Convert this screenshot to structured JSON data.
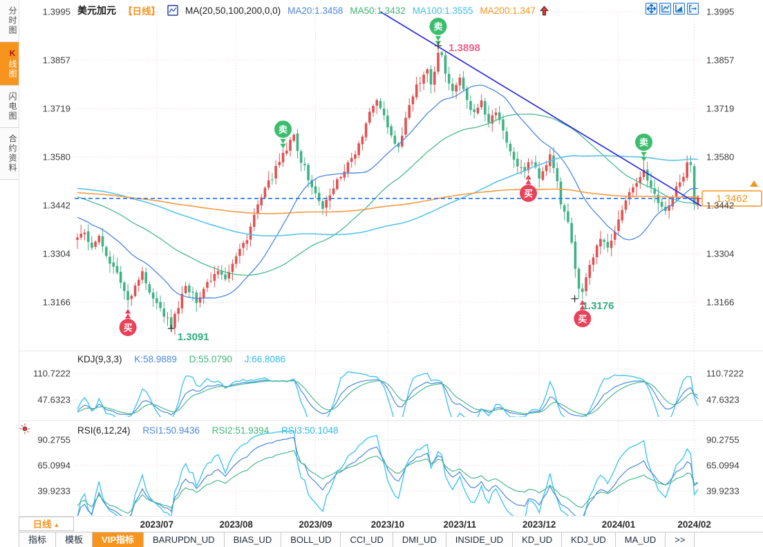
{
  "header": {
    "symbol": "美元加元",
    "period_tag": "【日线】",
    "ma_settings": "MA(20,50,100,200,0,0)",
    "ma_values": [
      {
        "label": "MA20:1.3458",
        "color": "#4a86e0"
      },
      {
        "label": "MA50:1.3432",
        "color": "#3cb878"
      },
      {
        "label": "MA100:1.3555",
        "color": "#45c0e8"
      },
      {
        "label": "MA200:1.347",
        "color": "#f7941d"
      }
    ]
  },
  "sidebar": {
    "items": [
      {
        "label": "分时图",
        "selected": false
      },
      {
        "label": "K线图",
        "label_head": "K",
        "label_rest": "线图",
        "selected": true
      },
      {
        "label": "闪电图",
        "selected": false
      },
      {
        "label": "合约资料",
        "selected": false
      }
    ]
  },
  "kdj": {
    "title": "KDJ(9,3,3)",
    "k_label": "K:58.9889",
    "d_label": "D:55.0790",
    "j_label": "J:66.8086",
    "axis": [
      "110.7222",
      "47.6323"
    ]
  },
  "rsi": {
    "title": "RSI(6,12,24)",
    "labels": [
      "RSI1:50.9436",
      "RSI2:51.9394",
      "RSI3:50.1048"
    ],
    "axis": [
      "90.2755",
      "65.0994",
      "39.9233"
    ]
  },
  "xaxis": {
    "period_label": "日线",
    "period_arrow": "▲",
    "months": [
      {
        "label": "2023/07",
        "day": 22
      },
      {
        "label": "2023/08",
        "day": 44
      },
      {
        "label": "2023/09",
        "day": 66
      },
      {
        "label": "2023/10",
        "day": 86
      },
      {
        "label": "2023/11",
        "day": 106
      },
      {
        "label": "2023/12",
        "day": 128
      },
      {
        "label": "2024/01",
        "day": 150
      },
      {
        "label": "2024/02",
        "day": 171
      }
    ]
  },
  "bottom_tabs": {
    "items": [
      {
        "label": "指标",
        "selected": false
      },
      {
        "label": "模板",
        "selected": false
      },
      {
        "label": "VIP指标",
        "selected": true
      },
      {
        "label": "BARUPDN_UD",
        "selected": false
      },
      {
        "label": "BIAS_UD",
        "selected": false
      },
      {
        "label": "BOLL_UD",
        "selected": false
      },
      {
        "label": "CCI_UD",
        "selected": false
      },
      {
        "label": "DMI_UD",
        "selected": false
      },
      {
        "label": "INSIDE_UD",
        "selected": false
      },
      {
        "label": "KD_UD",
        "selected": false
      },
      {
        "label": "KDJ_UD",
        "selected": false
      },
      {
        "label": "MA_UD",
        "selected": false
      },
      {
        "label": ">>",
        "selected": false
      }
    ]
  },
  "colors": {
    "up": "#e05252",
    "down": "#3fb286",
    "sell_badge": "#3cbd6e",
    "buy_badge": "#e8425a",
    "high_label": "#f0618c",
    "low_label": "#2fae7e",
    "accent_orange": "#f7941d",
    "trendline": "#2b2ce0",
    "current_price_line": "#2f7ced",
    "grid": "#f0d6d6",
    "ma20": "#4a86e0",
    "ma50": "#46b98c",
    "ma100": "#56c3ea",
    "ma200": "#f59b41",
    "k_line": "#4a86e0",
    "d_line": "#46b98c",
    "j_line": "#3fc6ef"
  },
  "chart_data": {
    "type": "candlestick",
    "title": "美元加元 日线 (USD/CAD daily)",
    "ylim": [
      1.3166,
      1.3995
    ],
    "y_ticks": [
      "1.3995",
      "1.3857",
      "1.3719",
      "1.3580",
      "1.3442",
      "1.3304",
      "1.3166"
    ],
    "grid": true,
    "close_anchors": [
      [
        0,
        1.3345
      ],
      [
        2,
        1.3362
      ],
      [
        4,
        1.333
      ],
      [
        6,
        1.3348
      ],
      [
        8,
        1.3305
      ],
      [
        10,
        1.3262
      ],
      [
        12,
        1.3225
      ],
      [
        14,
        1.3172
      ],
      [
        16,
        1.3215
      ],
      [
        18,
        1.3252
      ],
      [
        20,
        1.3188
      ],
      [
        23,
        1.3148
      ],
      [
        26,
        1.3096
      ],
      [
        28,
        1.3158
      ],
      [
        30,
        1.3208
      ],
      [
        33,
        1.3172
      ],
      [
        36,
        1.3222
      ],
      [
        39,
        1.3262
      ],
      [
        41,
        1.3238
      ],
      [
        44,
        1.3295
      ],
      [
        47,
        1.3352
      ],
      [
        50,
        1.3442
      ],
      [
        53,
        1.3505
      ],
      [
        56,
        1.3565
      ],
      [
        58,
        1.3602
      ],
      [
        60,
        1.364
      ],
      [
        62,
        1.3572
      ],
      [
        64,
        1.3522
      ],
      [
        66,
        1.3472
      ],
      [
        68,
        1.3438
      ],
      [
        70,
        1.3468
      ],
      [
        72,
        1.3512
      ],
      [
        75,
        1.3562
      ],
      [
        78,
        1.3612
      ],
      [
        81,
        1.3702
      ],
      [
        83,
        1.3748
      ],
      [
        85,
        1.3702
      ],
      [
        87,
        1.3642
      ],
      [
        89,
        1.3608
      ],
      [
        91,
        1.3692
      ],
      [
        93,
        1.3758
      ],
      [
        95,
        1.3798
      ],
      [
        97,
        1.3822
      ],
      [
        98,
        1.3778
      ],
      [
        100,
        1.3868
      ],
      [
        101,
        1.3878
      ],
      [
        102,
        1.3828
      ],
      [
        104,
        1.3772
      ],
      [
        106,
        1.3802
      ],
      [
        108,
        1.3742
      ],
      [
        110,
        1.3702
      ],
      [
        112,
        1.3732
      ],
      [
        114,
        1.3682
      ],
      [
        116,
        1.3705
      ],
      [
        118,
        1.3652
      ],
      [
        120,
        1.3602
      ],
      [
        122,
        1.3562
      ],
      [
        124,
        1.3548
      ],
      [
        126,
        1.3565
      ],
      [
        128,
        1.3522
      ],
      [
        130,
        1.3562
      ],
      [
        131,
        1.3592
      ],
      [
        132,
        1.3552
      ],
      [
        134,
        1.3452
      ],
      [
        136,
        1.3392
      ],
      [
        137,
        1.3335
      ],
      [
        138,
        1.3262
      ],
      [
        139,
        1.3198
      ],
      [
        140,
        1.3188
      ],
      [
        141,
        1.3242
      ],
      [
        143,
        1.3295
      ],
      [
        145,
        1.3342
      ],
      [
        147,
        1.3315
      ],
      [
        149,
        1.3365
      ],
      [
        151,
        1.3422
      ],
      [
        153,
        1.3472
      ],
      [
        155,
        1.3512
      ],
      [
        157,
        1.3542
      ],
      [
        159,
        1.3492
      ],
      [
        161,
        1.3452
      ],
      [
        163,
        1.3425
      ],
      [
        165,
        1.3475
      ],
      [
        167,
        1.3512
      ],
      [
        169,
        1.3555
      ],
      [
        170,
        1.3562
      ],
      [
        171,
        1.3452
      ],
      [
        172,
        1.3462
      ]
    ],
    "history_anchors": [
      [
        -220,
        1.355
      ],
      [
        -180,
        1.345
      ],
      [
        -150,
        1.353
      ],
      [
        -120,
        1.34
      ],
      [
        -90,
        1.348
      ],
      [
        -60,
        1.356
      ],
      [
        -30,
        1.35
      ],
      [
        -10,
        1.342
      ],
      [
        -1,
        1.3352
      ]
    ],
    "key_points": {
      "high": {
        "day": 100,
        "price": 1.3898,
        "label": "1.3898"
      },
      "low1": {
        "day": 26,
        "price": 1.3091,
        "label": "1.3091"
      },
      "low2": {
        "day": 139,
        "price": 1.3176,
        "label": "1.3176"
      },
      "last": {
        "day": 172,
        "price": 1.3462,
        "label": "1.3462"
      }
    },
    "signals": {
      "sell_days": [
        57,
        100,
        157
      ],
      "buy_days": [
        14,
        125,
        140
      ],
      "sell_text": "卖",
      "buy_text": "买"
    },
    "trendline": {
      "from": [
        84,
        1.3995
      ],
      "to": [
        173,
        1.344
      ]
    },
    "moving_averages": [
      {
        "period": 20,
        "color": "#4a86e0",
        "width": 1.3
      },
      {
        "period": 50,
        "color": "#46b98c",
        "width": 1.3
      },
      {
        "period": 100,
        "color": "#56c3ea",
        "width": 1.6
      },
      {
        "period": 200,
        "color": "#f59b41",
        "width": 1.6
      }
    ],
    "kdj_values": {
      "k": 58.9889,
      "d": 55.079,
      "j": 66.8086
    },
    "rsi_values": {
      "rsi1": 50.9436,
      "rsi2": 51.9394,
      "rsi3": 50.1048
    }
  }
}
